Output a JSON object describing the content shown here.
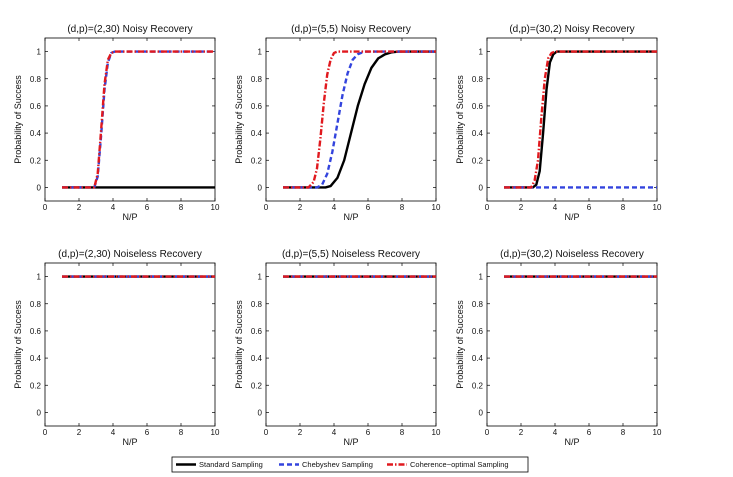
{
  "chart_data": [
    {
      "type": "line",
      "title": "(d,p)=(2,30) Noisy Recovery",
      "xlabel": "N/P",
      "ylabel": "Probability of Success",
      "xlim": [
        0,
        10
      ],
      "ylim": [
        -0.1,
        1.1
      ],
      "xticks": [
        "0",
        "2",
        "4",
        "6",
        "8",
        "10"
      ],
      "yticks": [
        "0",
        "0.2",
        "0.4",
        "0.6",
        "0.8",
        "1"
      ],
      "series": [
        {
          "name": "Standard Sampling",
          "x": [
            1,
            2,
            3,
            3.5,
            4,
            5,
            6,
            7,
            8,
            9,
            10
          ],
          "values": [
            0,
            0,
            0,
            0,
            0,
            0,
            0,
            0,
            0,
            0,
            0
          ]
        },
        {
          "name": "Chebyshev Sampling",
          "x": [
            1,
            2,
            2.9,
            3.1,
            3.3,
            3.5,
            3.7,
            3.9,
            4.1,
            4.3,
            5,
            6,
            7,
            8,
            9,
            10
          ],
          "values": [
            0,
            0,
            0,
            0.08,
            0.38,
            0.72,
            0.92,
            0.99,
            1,
            1,
            1,
            1,
            1,
            1,
            1,
            1
          ]
        },
        {
          "name": "Coherence-optimal Sampling",
          "x": [
            1,
            2,
            2.9,
            3.1,
            3.3,
            3.5,
            3.7,
            3.9,
            4.1,
            4.3,
            5,
            6,
            7,
            8,
            9,
            10
          ],
          "values": [
            0,
            0,
            0,
            0.1,
            0.42,
            0.76,
            0.94,
            0.99,
            1,
            1,
            1,
            1,
            1,
            1,
            1,
            1
          ]
        }
      ]
    },
    {
      "type": "line",
      "title": "(d,p)=(5,5) Noisy Recovery",
      "xlabel": "N/P",
      "ylabel": "Probability of Success",
      "xlim": [
        0,
        10
      ],
      "ylim": [
        -0.1,
        1.1
      ],
      "xticks": [
        "0",
        "2",
        "4",
        "6",
        "8",
        "10"
      ],
      "yticks": [
        "0",
        "0.2",
        "0.4",
        "0.6",
        "0.8",
        "1"
      ],
      "series": [
        {
          "name": "Standard Sampling",
          "x": [
            1,
            2,
            3,
            3.5,
            3.8,
            4.2,
            4.6,
            5,
            5.4,
            5.8,
            6.2,
            6.6,
            7,
            7.4,
            7.8,
            8.2,
            9,
            10
          ],
          "values": [
            0,
            0,
            0,
            0,
            0.01,
            0.07,
            0.2,
            0.4,
            0.6,
            0.76,
            0.88,
            0.95,
            0.98,
            0.995,
            1,
            1,
            1,
            1
          ]
        },
        {
          "name": "Chebyshev Sampling",
          "x": [
            1,
            2,
            3,
            3.3,
            3.6,
            3.9,
            4.2,
            4.5,
            4.8,
            5.1,
            5.4,
            5.8,
            6.2,
            7,
            8,
            9,
            10
          ],
          "values": [
            0,
            0,
            0,
            0.02,
            0.1,
            0.26,
            0.47,
            0.68,
            0.84,
            0.94,
            0.98,
            1,
            1,
            1,
            1,
            1,
            1
          ]
        },
        {
          "name": "Coherence-optimal Sampling",
          "x": [
            1,
            2,
            2.5,
            2.8,
            3.0,
            3.2,
            3.4,
            3.6,
            3.8,
            4.0,
            4.2,
            4.5,
            5,
            6,
            7,
            8,
            9,
            10
          ],
          "values": [
            0,
            0,
            0,
            0.04,
            0.14,
            0.36,
            0.62,
            0.83,
            0.94,
            0.99,
            1,
            1,
            1,
            1,
            1,
            1,
            1,
            1
          ]
        }
      ]
    },
    {
      "type": "line",
      "title": "(d,p)=(30,2) Noisy Recovery",
      "xlabel": "N/P",
      "ylabel": "Probability of Success",
      "xlim": [
        0,
        10
      ],
      "ylim": [
        -0.1,
        1.1
      ],
      "xticks": [
        "0",
        "2",
        "4",
        "6",
        "8",
        "10"
      ],
      "yticks": [
        "0",
        "0.2",
        "0.4",
        "0.6",
        "0.8",
        "1"
      ],
      "series": [
        {
          "name": "Standard Sampling",
          "x": [
            1,
            2,
            2.7,
            2.9,
            3.1,
            3.3,
            3.5,
            3.7,
            3.9,
            4.1,
            4.4,
            5,
            6,
            7,
            8,
            9,
            10
          ],
          "values": [
            0,
            0,
            0,
            0.02,
            0.12,
            0.4,
            0.72,
            0.92,
            0.98,
            1,
            1,
            1,
            1,
            1,
            1,
            1,
            1
          ]
        },
        {
          "name": "Chebyshev Sampling",
          "x": [
            1,
            2,
            3,
            4,
            5,
            6,
            7,
            8,
            9,
            10
          ],
          "values": [
            0,
            0,
            0,
            0,
            0,
            0,
            0,
            0,
            0,
            0
          ]
        },
        {
          "name": "Coherence-optimal Sampling",
          "x": [
            1,
            2,
            2.6,
            2.8,
            3.0,
            3.2,
            3.4,
            3.6,
            3.8,
            4.0,
            4.3,
            5,
            6,
            7,
            8,
            9,
            10
          ],
          "values": [
            0,
            0,
            0,
            0.05,
            0.2,
            0.52,
            0.8,
            0.95,
            0.99,
            1,
            1,
            1,
            1,
            1,
            1,
            1,
            1
          ]
        }
      ]
    },
    {
      "type": "line",
      "title": "(d,p)=(2,30) Noiseless Recovery",
      "xlabel": "N/P",
      "ylabel": "Probability of Success",
      "xlim": [
        0,
        10
      ],
      "ylim": [
        -0.1,
        1.1
      ],
      "xticks": [
        "0",
        "2",
        "4",
        "6",
        "8",
        "10"
      ],
      "yticks": [
        "0",
        "0.2",
        "0.4",
        "0.6",
        "0.8",
        "1"
      ],
      "series": [
        {
          "name": "Standard Sampling",
          "x": [
            1,
            10
          ],
          "values": [
            1,
            1
          ]
        },
        {
          "name": "Chebyshev Sampling",
          "x": [
            1,
            10
          ],
          "values": [
            1,
            1
          ]
        },
        {
          "name": "Coherence-optimal Sampling",
          "x": [
            1,
            10
          ],
          "values": [
            1,
            1
          ]
        }
      ]
    },
    {
      "type": "line",
      "title": "(d,p)=(5,5) Noiseless Recovery",
      "xlabel": "N/P",
      "ylabel": "Probability of Success",
      "xlim": [
        0,
        10
      ],
      "ylim": [
        -0.1,
        1.1
      ],
      "xticks": [
        "0",
        "2",
        "4",
        "6",
        "8",
        "10"
      ],
      "yticks": [
        "0",
        "0.2",
        "0.4",
        "0.6",
        "0.8",
        "1"
      ],
      "series": [
        {
          "name": "Standard Sampling",
          "x": [
            1,
            10
          ],
          "values": [
            1,
            1
          ]
        },
        {
          "name": "Chebyshev Sampling",
          "x": [
            1,
            10
          ],
          "values": [
            1,
            1
          ]
        },
        {
          "name": "Coherence-optimal Sampling",
          "x": [
            1,
            10
          ],
          "values": [
            1,
            1
          ]
        }
      ]
    },
    {
      "type": "line",
      "title": "(d,p)=(30,2) Noiseless Recovery",
      "xlabel": "N/P",
      "ylabel": "Probability of Success",
      "xlim": [
        0,
        10
      ],
      "ylim": [
        -0.1,
        1.1
      ],
      "xticks": [
        "0",
        "2",
        "4",
        "6",
        "8",
        "10"
      ],
      "yticks": [
        "0",
        "0.2",
        "0.4",
        "0.6",
        "0.8",
        "1"
      ],
      "series": [
        {
          "name": "Standard Sampling",
          "x": [
            1,
            10
          ],
          "values": [
            1,
            1
          ]
        },
        {
          "name": "Chebyshev Sampling",
          "x": [
            1,
            10
          ],
          "values": [
            1,
            1
          ]
        },
        {
          "name": "Coherence-optimal Sampling",
          "x": [
            1,
            10
          ],
          "values": [
            1,
            1
          ]
        }
      ]
    }
  ],
  "legend": {
    "placement": "bottom-center",
    "entries": [
      "Standard Sampling",
      "Chebyshev Sampling",
      "Coherence−optimal Sampling"
    ]
  },
  "colors": {
    "Standard Sampling": "#000000",
    "Chebyshev Sampling": "#3344dd",
    "Coherence-optimal Sampling": "#e0191e",
    "axis": "#000000"
  }
}
